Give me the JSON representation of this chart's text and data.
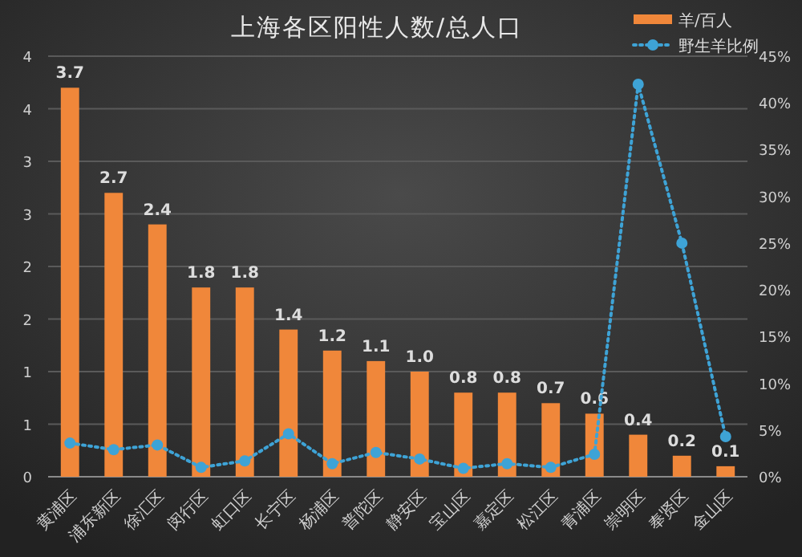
{
  "chart_data": {
    "type": "bar",
    "title": "上海各区阳性人数/总人口",
    "categories": [
      "黄浦区",
      "浦东新区",
      "徐汇区",
      "闵行区",
      "虹口区",
      "长宁区",
      "杨浦区",
      "普陀区",
      "静安区",
      "宝山区",
      "嘉定区",
      "松江区",
      "青浦区",
      "崇明区",
      "奉贤区",
      "金山区"
    ],
    "series": [
      {
        "name": "羊/百人",
        "color": "#f0873a",
        "values": [
          3.7,
          2.7,
          2.4,
          1.8,
          1.8,
          1.4,
          1.2,
          1.1,
          1.0,
          0.8,
          0.8,
          0.7,
          0.6,
          0.4,
          0.2,
          0.1
        ],
        "value_labels": [
          "3.7",
          "2.7",
          "2.4",
          "1.8",
          "1.8",
          "1.4",
          "1.2",
          "1.1",
          "1.0",
          "0.8",
          "0.8",
          "0.7",
          "0.6",
          "0.4",
          "0.2",
          "0.1"
        ]
      },
      {
        "name": "野生羊比例",
        "type": "line",
        "axis": "y2",
        "color": "#3ea3d6",
        "marker": "circle",
        "line_style": "dotted",
        "values": [
          3.6,
          2.9,
          3.4,
          1.0,
          1.7,
          4.6,
          1.4,
          2.6,
          1.9,
          0.9,
          1.4,
          1.0,
          2.4,
          42,
          25,
          4.3
        ]
      }
    ],
    "ylim": [
      0,
      4
    ],
    "yticks": [
      0,
      {
        "value": 0.5,
        "label": "1"
      },
      1,
      {
        "value": 1.5,
        "label": "2"
      },
      2,
      {
        "value": 2.5,
        "label": "3"
      },
      3,
      {
        "value": 3.5,
        "label": "4"
      },
      4
    ],
    "y2lim": [
      0,
      45
    ],
    "y2ticks": [
      {
        "value": 0,
        "label": "0%"
      },
      {
        "value": 5,
        "label": "5%"
      },
      {
        "value": 10,
        "label": "10%"
      },
      {
        "value": 15,
        "label": "15%"
      },
      {
        "value": 20,
        "label": "20%"
      },
      {
        "value": 25,
        "label": "25%"
      },
      {
        "value": 30,
        "label": "30%"
      },
      {
        "value": 35,
        "label": "35%"
      },
      {
        "value": 40,
        "label": "40%"
      },
      {
        "value": 45,
        "label": "45%"
      }
    ],
    "grid": "y",
    "legend": "top right"
  }
}
